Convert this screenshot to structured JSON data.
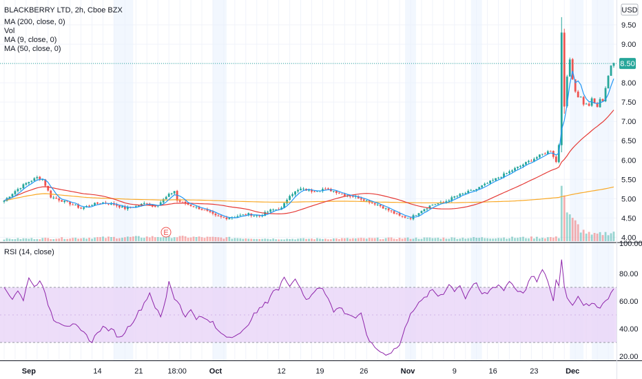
{
  "chart_data": [
    {
      "type": "candlestick",
      "title": "BLACKBERRY LTD, 2h, Cboe BZX",
      "currency": "USD",
      "legend": [
        "MA (200, close, 0)",
        "Vol",
        "MA (9, close, 0)",
        "MA (50, close, 0)"
      ],
      "ylim": [
        3.9,
        10.0
      ],
      "y_ticks": [
        4.0,
        4.5,
        5.0,
        5.5,
        6.0,
        6.5,
        7.0,
        7.5,
        8.0,
        8.5,
        9.0,
        9.5
      ],
      "y_tick_labels": [
        "4.00",
        "4.50",
        "5.00",
        "5.50",
        "6.00",
        "6.50",
        "7.00",
        "7.50",
        "8.00",
        "8.50",
        "9.00",
        "9.50"
      ],
      "last_price": 8.5,
      "last_price_label": "8.50",
      "event_marker": "E",
      "colors": {
        "up": "#26a69a",
        "down": "#ef5350",
        "ma9": "#2196f3",
        "ma50": "#e53935",
        "ma200": "#f9a825",
        "price_line": "#26a69a",
        "rsi": "#8e24aa",
        "rsi_band": "#e9d4f7"
      },
      "close_path": [
        [
          0,
          4.95
        ],
        [
          4,
          5.2
        ],
        [
          8,
          5.4
        ],
        [
          12,
          5.55
        ],
        [
          14,
          5.5
        ],
        [
          17,
          5.05
        ],
        [
          21,
          4.95
        ],
        [
          25,
          4.85
        ],
        [
          28,
          4.75
        ],
        [
          32,
          4.85
        ],
        [
          36,
          4.9
        ],
        [
          40,
          4.85
        ],
        [
          44,
          4.75
        ],
        [
          48,
          4.8
        ],
        [
          52,
          4.9
        ],
        [
          54,
          4.8
        ],
        [
          56,
          4.85
        ],
        [
          60,
          5.1
        ],
        [
          62,
          5.2
        ],
        [
          63,
          4.95
        ],
        [
          65,
          4.9
        ],
        [
          69,
          4.8
        ],
        [
          73,
          4.7
        ],
        [
          77,
          4.55
        ],
        [
          81,
          4.5
        ],
        [
          85,
          4.55
        ],
        [
          89,
          4.6
        ],
        [
          93,
          4.55
        ],
        [
          97,
          4.7
        ],
        [
          101,
          4.75
        ],
        [
          104,
          5.1
        ],
        [
          108,
          5.25
        ],
        [
          112,
          5.2
        ],
        [
          116,
          5.25
        ],
        [
          120,
          5.2
        ],
        [
          124,
          5.1
        ],
        [
          128,
          5.05
        ],
        [
          132,
          4.95
        ],
        [
          136,
          4.85
        ],
        [
          140,
          4.7
        ],
        [
          144,
          4.55
        ],
        [
          148,
          4.5
        ],
        [
          152,
          4.7
        ],
        [
          156,
          4.85
        ],
        [
          160,
          4.9
        ],
        [
          164,
          5.05
        ],
        [
          168,
          5.15
        ],
        [
          172,
          5.25
        ],
        [
          176,
          5.4
        ],
        [
          180,
          5.55
        ],
        [
          184,
          5.7
        ],
        [
          188,
          5.85
        ],
        [
          192,
          6.0
        ],
        [
          196,
          6.15
        ],
        [
          199,
          6.25
        ],
        [
          201,
          5.95
        ],
        [
          202,
          6.4
        ],
        [
          203,
          9.3
        ],
        [
          204,
          7.5
        ],
        [
          206,
          8.6
        ],
        [
          208,
          7.8
        ],
        [
          210,
          7.6
        ],
        [
          212,
          7.4
        ],
        [
          214,
          7.5
        ],
        [
          216,
          7.4
        ],
        [
          218,
          7.6
        ],
        [
          220,
          8.2
        ],
        [
          222,
          8.5
        ]
      ],
      "volume_path": [
        [
          0,
          0.3
        ],
        [
          60,
          0.6
        ],
        [
          101,
          0.3
        ],
        [
          202,
          0.5
        ],
        [
          203,
          9.0
        ],
        [
          204,
          6.0
        ],
        [
          205,
          4.0
        ],
        [
          206,
          3.0
        ],
        [
          209,
          2.0
        ],
        [
          210,
          1.5
        ],
        [
          214,
          0.8
        ],
        [
          218,
          1.0
        ],
        [
          222,
          1.2
        ]
      ]
    },
    {
      "type": "line",
      "title": "RSI (14, close)",
      "ylim": [
        17,
        100
      ],
      "y_ticks": [
        20,
        40,
        60,
        80,
        100
      ],
      "y_tick_labels": [
        "20.00",
        "40.00",
        "60.00",
        "80.00",
        "100.00"
      ],
      "bands": [
        30,
        70
      ],
      "rsi_path": [
        [
          0,
          70
        ],
        [
          3,
          62
        ],
        [
          5,
          68
        ],
        [
          7,
          60
        ],
        [
          9,
          78
        ],
        [
          11,
          70
        ],
        [
          13,
          76
        ],
        [
          16,
          58
        ],
        [
          18,
          47
        ],
        [
          22,
          43
        ],
        [
          26,
          42
        ],
        [
          28,
          38
        ],
        [
          30,
          35
        ],
        [
          32,
          30
        ],
        [
          34,
          38
        ],
        [
          36,
          41
        ],
        [
          40,
          38
        ],
        [
          42,
          33
        ],
        [
          44,
          38
        ],
        [
          47,
          46
        ],
        [
          50,
          55
        ],
        [
          53,
          66
        ],
        [
          55,
          56
        ],
        [
          57,
          48
        ],
        [
          59,
          62
        ],
        [
          60,
          75
        ],
        [
          62,
          62
        ],
        [
          64,
          58
        ],
        [
          66,
          48
        ],
        [
          68,
          54
        ],
        [
          70,
          48
        ],
        [
          72,
          48
        ],
        [
          76,
          44
        ],
        [
          78,
          38
        ],
        [
          80,
          36
        ],
        [
          82,
          34
        ],
        [
          84,
          36
        ],
        [
          86,
          36
        ],
        [
          88,
          40
        ],
        [
          90,
          48
        ],
        [
          92,
          52
        ],
        [
          94,
          56
        ],
        [
          96,
          60
        ],
        [
          98,
          68
        ],
        [
          100,
          68
        ],
        [
          102,
          78
        ],
        [
          104,
          72
        ],
        [
          106,
          76
        ],
        [
          108,
          70
        ],
        [
          110,
          60
        ],
        [
          112,
          64
        ],
        [
          114,
          70
        ],
        [
          116,
          70
        ],
        [
          118,
          62
        ],
        [
          120,
          52
        ],
        [
          122,
          56
        ],
        [
          124,
          52
        ],
        [
          126,
          50
        ],
        [
          128,
          48
        ],
        [
          130,
          50
        ],
        [
          132,
          36
        ],
        [
          134,
          28
        ],
        [
          136,
          25
        ],
        [
          138,
          22
        ],
        [
          140,
          22
        ],
        [
          142,
          25
        ],
        [
          144,
          28
        ],
        [
          146,
          40
        ],
        [
          148,
          52
        ],
        [
          150,
          56
        ],
        [
          152,
          60
        ],
        [
          154,
          64
        ],
        [
          156,
          68
        ],
        [
          158,
          64
        ],
        [
          160,
          66
        ],
        [
          162,
          72
        ],
        [
          164,
          68
        ],
        [
          166,
          72
        ],
        [
          168,
          62
        ],
        [
          170,
          70
        ],
        [
          172,
          72
        ],
        [
          174,
          65
        ],
        [
          176,
          66
        ],
        [
          178,
          70
        ],
        [
          180,
          72
        ],
        [
          182,
          68
        ],
        [
          184,
          75
        ],
        [
          186,
          70
        ],
        [
          188,
          66
        ],
        [
          190,
          68
        ],
        [
          192,
          78
        ],
        [
          194,
          75
        ],
        [
          196,
          82
        ],
        [
          198,
          75
        ],
        [
          200,
          60
        ],
        [
          201,
          75
        ],
        [
          202,
          72
        ],
        [
          203,
          90
        ],
        [
          204,
          72
        ],
        [
          205,
          62
        ],
        [
          207,
          58
        ],
        [
          209,
          64
        ],
        [
          211,
          58
        ],
        [
          213,
          56
        ],
        [
          215,
          58
        ],
        [
          217,
          56
        ],
        [
          219,
          60
        ],
        [
          221,
          66
        ],
        [
          222,
          68
        ]
      ]
    }
  ],
  "x_axis": {
    "labels": [
      {
        "text": "Sep",
        "bold": true,
        "i": 9
      },
      {
        "text": "14",
        "bold": false,
        "i": 34
      },
      {
        "text": "21",
        "bold": false,
        "i": 49
      },
      {
        "text": "18:00",
        "bold": false,
        "i": 63
      },
      {
        "text": "Oct",
        "bold": true,
        "i": 77
      },
      {
        "text": "12",
        "bold": false,
        "i": 101
      },
      {
        "text": "19",
        "bold": false,
        "i": 115
      },
      {
        "text": "26",
        "bold": false,
        "i": 131
      },
      {
        "text": "Nov",
        "bold": true,
        "i": 147
      },
      {
        "text": "9",
        "bold": false,
        "i": 164
      },
      {
        "text": "16",
        "bold": false,
        "i": 178
      },
      {
        "text": "23",
        "bold": false,
        "i": 193
      },
      {
        "text": "Dec",
        "bold": true,
        "i": 207
      }
    ]
  }
}
